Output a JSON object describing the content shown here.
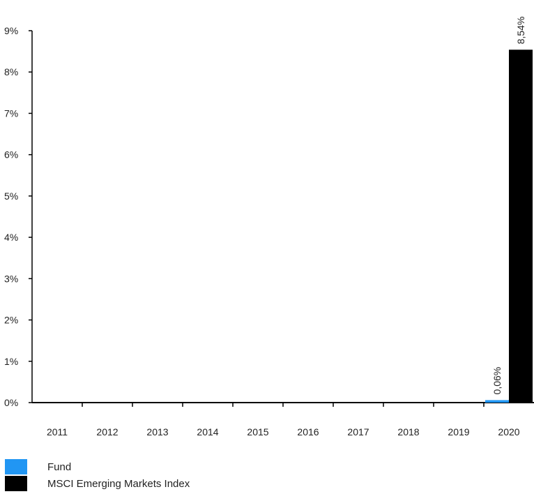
{
  "chart_data": {
    "type": "bar",
    "categories": [
      "2011",
      "2012",
      "2013",
      "2014",
      "2015",
      "2016",
      "2017",
      "2018",
      "2019",
      "2020"
    ],
    "series": [
      {
        "name": "Fund",
        "color": "#2196F3",
        "values": [
          null,
          null,
          null,
          null,
          null,
          null,
          null,
          null,
          null,
          0.06
        ]
      },
      {
        "name": "MSCI Emerging Markets Index",
        "color": "#000000",
        "values": [
          null,
          null,
          null,
          null,
          null,
          null,
          null,
          null,
          null,
          8.54
        ]
      }
    ],
    "data_labels": [
      {
        "series": 0,
        "category": "2020",
        "text": "0,06%"
      },
      {
        "series": 1,
        "category": "2020",
        "text": "8,54%"
      }
    ],
    "yticks": [
      "0%",
      "1%",
      "2%",
      "3%",
      "4%",
      "5%",
      "6%",
      "7%",
      "8%",
      "9%"
    ],
    "ylim": [
      0,
      9
    ],
    "grid": false,
    "legend_position": "bottom-left"
  },
  "legend": [
    {
      "label": "Fund",
      "color": "#2196F3"
    },
    {
      "label": "MSCI Emerging Markets Index",
      "color": "#000000"
    }
  ]
}
